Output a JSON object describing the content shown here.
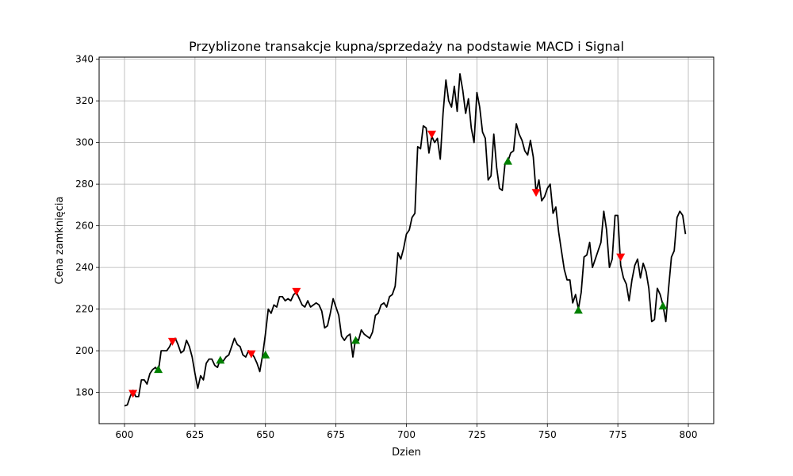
{
  "chart_data": {
    "type": "line",
    "title": "Przyblizone transakcje kupna/sprzedaży na podstawie MACD i Signal",
    "xlabel": "Dzien",
    "ylabel": "Cena zamknięcia",
    "xlim": [
      591,
      809
    ],
    "ylim": [
      165,
      341
    ],
    "xticks": [
      600,
      625,
      650,
      675,
      700,
      725,
      750,
      775,
      800
    ],
    "yticks": [
      180,
      200,
      220,
      240,
      260,
      280,
      300,
      320,
      340
    ],
    "grid": true,
    "line_color": "#000000",
    "buy_color": "#008000",
    "sell_color": "#ff0000",
    "series": [
      {
        "kind": "price",
        "x": [
          600,
          601,
          602,
          603,
          604,
          605,
          606,
          607,
          608,
          609,
          610,
          611,
          612,
          613,
          614,
          615,
          616,
          617,
          618,
          619,
          620,
          621,
          622,
          623,
          624,
          625,
          626,
          627,
          628,
          629,
          630,
          631,
          632,
          633,
          634,
          635,
          636,
          637,
          638,
          639,
          640,
          641,
          642,
          643,
          644,
          645,
          646,
          647,
          648,
          649,
          650,
          651,
          652,
          653,
          654,
          655,
          656,
          657,
          658,
          659,
          660,
          661,
          662,
          663,
          664,
          665,
          666,
          667,
          668,
          669,
          670,
          671,
          672,
          673,
          674,
          675,
          676,
          677,
          678,
          679,
          680,
          681,
          682,
          683,
          684,
          685,
          686,
          687,
          688,
          689,
          690,
          691,
          692,
          693,
          694,
          695,
          696,
          697,
          698,
          699,
          700,
          701,
          702,
          703,
          704,
          705,
          706,
          707,
          708,
          709,
          710,
          711,
          712,
          713,
          714,
          715,
          716,
          717,
          718,
          719,
          720,
          721,
          722,
          723,
          724,
          725,
          726,
          727,
          728,
          729,
          730,
          731,
          732,
          733,
          734,
          735,
          736,
          737,
          738,
          739,
          740,
          741,
          742,
          743,
          744,
          745,
          746,
          747,
          748,
          749,
          750,
          751,
          752,
          753,
          754,
          755,
          756,
          757,
          758,
          759,
          760,
          761,
          762,
          763,
          764,
          765,
          766,
          767,
          768,
          769,
          770,
          771,
          772,
          773,
          774,
          775,
          776,
          777,
          778,
          779,
          780,
          781,
          782,
          783,
          784,
          785,
          786,
          787,
          788,
          789,
          790,
          791,
          792,
          793,
          794,
          795,
          796,
          797,
          798,
          799
        ],
        "y": [
          173.5,
          174,
          178,
          181,
          178,
          178,
          186,
          186,
          184,
          189,
          191,
          192,
          190,
          200,
          200,
          200,
          202,
          205,
          206,
          203,
          199,
          200,
          205,
          202,
          197,
          189,
          182,
          188,
          186,
          194,
          196,
          196,
          193,
          192,
          196,
          195,
          197,
          198,
          202,
          206,
          203,
          202,
          198,
          197,
          200,
          199,
          197,
          194,
          190,
          198,
          208,
          220,
          218,
          222,
          221,
          226,
          226,
          224,
          225,
          224,
          227,
          228,
          225,
          222,
          221,
          224,
          221,
          222,
          223,
          222,
          219,
          211,
          212,
          218,
          225,
          221,
          217,
          207,
          205,
          207,
          208,
          197,
          206,
          205,
          210,
          208,
          207,
          206,
          209,
          217,
          218,
          222,
          223,
          221,
          226,
          227,
          231,
          247,
          244,
          249,
          256,
          258,
          264,
          266,
          298,
          297,
          308,
          307,
          295,
          303,
          300,
          302,
          292,
          314,
          330,
          320,
          317,
          327,
          315,
          333,
          325,
          314,
          321,
          307,
          300,
          324,
          317,
          305,
          302,
          282,
          284,
          304,
          288,
          278,
          277,
          290,
          291,
          295,
          296,
          309,
          304,
          301,
          296,
          294,
          301,
          293,
          276,
          282,
          272,
          274,
          278,
          280,
          266,
          269,
          257,
          248,
          239,
          234,
          234,
          223,
          227,
          220,
          228,
          245,
          246,
          252,
          240,
          244,
          248,
          252,
          267,
          258,
          240,
          244,
          265,
          265,
          241,
          235,
          232,
          224,
          234,
          241,
          244,
          235,
          242,
          238,
          230,
          214,
          215,
          230,
          227,
          222,
          214,
          230,
          245,
          248,
          264,
          267,
          265,
          256
        ]
      },
      {
        "name": "Buy",
        "kind": "buy",
        "x": [
          612,
          634,
          650,
          682,
          736,
          761,
          791
        ],
        "y": [
          191,
          195.5,
          198,
          205,
          291,
          219.5,
          221.5
        ]
      },
      {
        "name": "Sell",
        "kind": "sell",
        "x": [
          603,
          617,
          645,
          661,
          709,
          746,
          776
        ],
        "y": [
          179.5,
          204.5,
          198.5,
          228.5,
          304,
          276,
          245
        ]
      }
    ]
  }
}
